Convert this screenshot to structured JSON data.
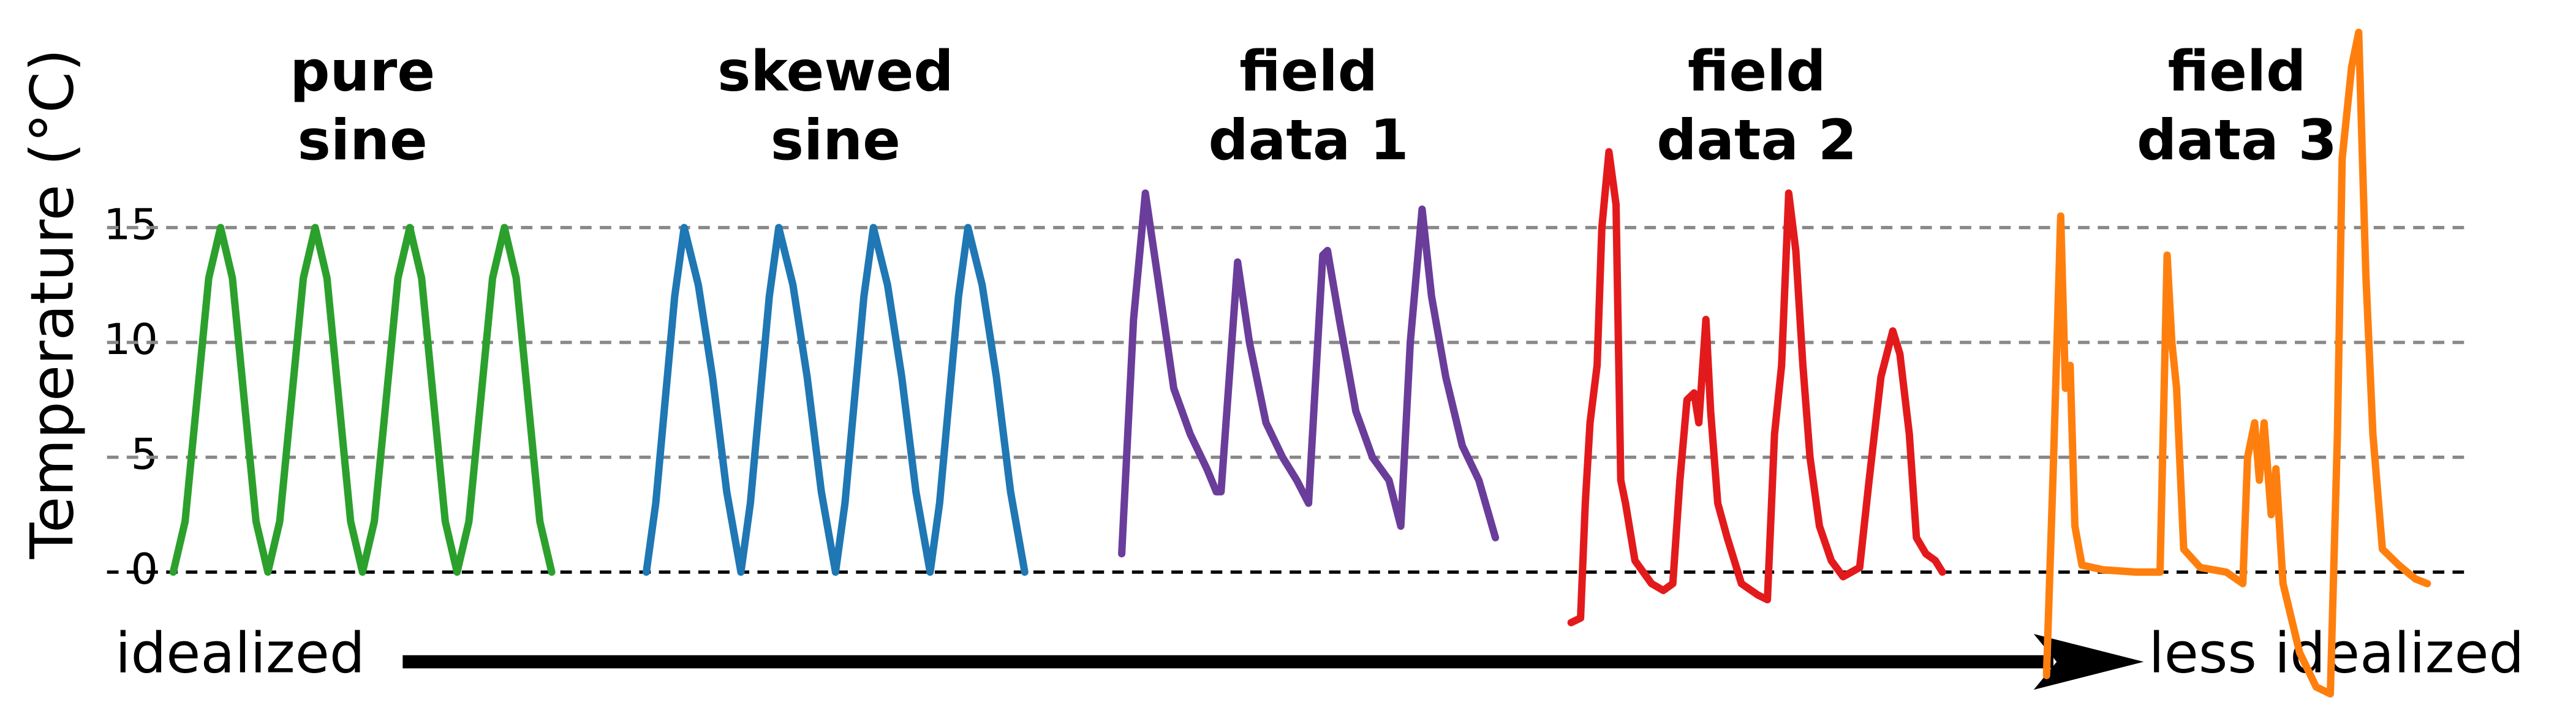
{
  "chart_data": {
    "type": "line",
    "y_label": "Temperature (°C)",
    "ylim": [
      -5.5,
      24
    ],
    "yticks": [
      0,
      5,
      10,
      15
    ],
    "xlim": [
      0,
      100
    ],
    "grid": true,
    "annotations": {
      "left": "idealized",
      "right": "less idealized"
    },
    "series": [
      {
        "name": "pure sine",
        "color": "#2ca02c",
        "x": [
          2.8,
          3.3,
          3.8,
          4.3,
          4.8,
          5.3,
          5.8,
          6.3,
          6.8,
          7.3,
          7.8,
          8.3,
          8.8,
          9.3,
          9.8,
          10.3,
          10.8,
          11.3,
          11.8,
          12.3,
          12.8,
          13.3,
          13.8,
          14.3,
          14.8,
          15.3,
          15.8,
          16.3,
          16.8,
          17.3,
          17.8,
          18.3,
          18.8
        ],
        "values": [
          0,
          2.2,
          7.5,
          12.8,
          15,
          12.8,
          7.5,
          2.2,
          0,
          2.2,
          7.5,
          12.8,
          15,
          12.8,
          7.5,
          2.2,
          0,
          2.2,
          7.5,
          12.8,
          15,
          12.8,
          7.5,
          2.2,
          0,
          2.2,
          7.5,
          12.8,
          15,
          12.8,
          7.5,
          2.2,
          0
        ]
      },
      {
        "name": "skewed sine",
        "color": "#1f77b4",
        "x": [
          22.8,
          23.2,
          23.6,
          24.0,
          24.4,
          25.0,
          25.6,
          26.2,
          26.8,
          27.2,
          27.6,
          28.0,
          28.4,
          29.0,
          29.6,
          30.2,
          30.8,
          31.2,
          31.6,
          32.0,
          32.4,
          33.0,
          33.6,
          34.2,
          34.8,
          35.2,
          35.6,
          36.0,
          36.4,
          37.0,
          37.6,
          38.2,
          38.8
        ],
        "values": [
          0,
          3,
          7.5,
          12,
          15,
          12.5,
          8.5,
          3.5,
          0,
          3,
          7.5,
          12,
          15,
          12.5,
          8.5,
          3.5,
          0,
          3,
          7.5,
          12,
          15,
          12.5,
          8.5,
          3.5,
          0,
          3,
          7.5,
          12,
          15,
          12.5,
          8.5,
          3.5,
          0
        ]
      },
      {
        "name": "field data 1",
        "color": "#6a3d9a",
        "x": [
          42.9,
          43.4,
          43.9,
          44.4,
          45.1,
          45.8,
          46.5,
          46.9,
          47.1,
          47.8,
          48.3,
          49.0,
          49.7,
          50.3,
          50.8,
          51.4,
          51.6,
          52.1,
          52.8,
          53.5,
          54.2,
          54.7,
          55.1,
          55.6,
          56.0,
          56.6,
          57.3,
          58.0,
          58.7
        ],
        "values": [
          0.8,
          11,
          16.5,
          13,
          8,
          6,
          4.5,
          3.5,
          3.5,
          13.5,
          10,
          6.5,
          5,
          4,
          3,
          13.8,
          14,
          11,
          7,
          5,
          4,
          2,
          10,
          15.8,
          12,
          8.5,
          5.5,
          4,
          1.5
        ]
      },
      {
        "name": "field data 2",
        "color": "#e31a1c",
        "x": [
          61.9,
          62.3,
          62.5,
          62.7,
          63.0,
          63.2,
          63.5,
          63.8,
          64.0,
          64.2,
          64.6,
          65.3,
          65.8,
          66.2,
          66.5,
          66.8,
          67.1,
          67.3,
          67.6,
          67.8,
          68.1,
          68.5,
          69.1,
          69.8,
          70.2,
          70.5,
          70.8,
          71.1,
          71.4,
          71.7,
          72.0,
          72.4,
          72.9,
          73.4,
          74.1,
          74.5,
          75.0,
          75.5,
          75.8,
          76.2,
          76.5,
          76.9,
          77.3,
          77.6
        ],
        "values": [
          -2.2,
          -2,
          3,
          6.5,
          9,
          15,
          18.3,
          16,
          4,
          3,
          0.5,
          -0.5,
          -0.8,
          -0.5,
          4,
          7.5,
          7.8,
          6.5,
          11,
          7,
          3,
          1.5,
          -0.5,
          -1,
          -1.2,
          6,
          9,
          16.5,
          14,
          9,
          5,
          2,
          0.5,
          -0.2,
          0.2,
          4,
          8.5,
          10.5,
          9.5,
          6,
          1.5,
          0.8,
          0.5,
          0
        ]
      },
      {
        "name": "field data 3",
        "color": "#ff7f0e",
        "x": [
          82.0,
          82.3,
          82.6,
          82.8,
          83.0,
          83.2,
          83.5,
          84.4,
          85.8,
          86.8,
          87.1,
          87.3,
          87.5,
          87.8,
          88.5,
          89.6,
          90.3,
          90.5,
          90.8,
          91.0,
          91.2,
          91.5,
          91.7,
          92.0,
          92.7,
          93.4,
          94.0,
          94.3,
          94.5,
          94.9,
          95.2,
          95.5,
          95.8,
          96.2,
          96.9,
          97.6,
          98.1
        ],
        "values": [
          -4.5,
          5,
          15.5,
          8,
          9,
          2,
          0.3,
          0.1,
          0,
          0,
          13.8,
          10,
          8,
          1,
          0.2,
          0,
          -0.5,
          5,
          6.5,
          4,
          6.5,
          2.5,
          4.5,
          -0.5,
          -3.5,
          -5,
          -5.3,
          6,
          18,
          22,
          23.5,
          13,
          6,
          1,
          0.3,
          -0.3,
          -0.5
        ]
      }
    ]
  }
}
